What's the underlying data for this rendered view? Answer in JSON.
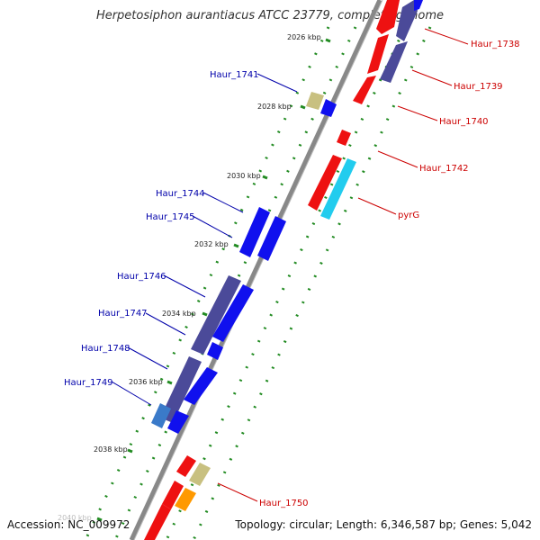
{
  "title": "Herpetosiphon aurantiacus ATCC 23779, complete genome",
  "footer": {
    "accession": "Accession: NC_009972",
    "summary": "Topology: circular; Length: 6,346,587 bp; Genes: 5,042"
  },
  "ticks": [
    {
      "label": "2026 kbp"
    },
    {
      "label": "2028 kbp"
    },
    {
      "label": "2030 kbp"
    },
    {
      "label": "2032 kbp"
    },
    {
      "label": "2034 kbp"
    },
    {
      "label": "2036 kbp"
    },
    {
      "label": "2038 kbp"
    },
    {
      "label": "2040 kbp"
    }
  ],
  "gene_labels": [
    {
      "name": "Haur_1738",
      "strand": "forward"
    },
    {
      "name": "Haur_1739",
      "strand": "forward"
    },
    {
      "name": "Haur_1740",
      "strand": "forward"
    },
    {
      "name": "Haur_1741",
      "strand": "reverse"
    },
    {
      "name": "Haur_1742",
      "strand": "forward"
    },
    {
      "name": "pyrG",
      "strand": "forward"
    },
    {
      "name": "Haur_1744",
      "strand": "reverse"
    },
    {
      "name": "Haur_1745",
      "strand": "reverse"
    },
    {
      "name": "Haur_1746",
      "strand": "reverse"
    },
    {
      "name": "Haur_1747",
      "strand": "reverse"
    },
    {
      "name": "Haur_1748",
      "strand": "reverse"
    },
    {
      "name": "Haur_1749",
      "strand": "reverse"
    },
    {
      "name": "Haur_1750",
      "strand": "forward"
    }
  ],
  "colors": {
    "forward_label": "#cc0000",
    "reverse_label": "#0000aa",
    "backbone": "#888888",
    "dotted_track": "#228b22",
    "red_feature": "#ee1111",
    "blue_feature": "#1010ee",
    "slate_feature": "#4b4a99",
    "khaki_feature": "#c8c080",
    "cyan_feature": "#22ccee",
    "orange_feature": "#ff9900"
  }
}
